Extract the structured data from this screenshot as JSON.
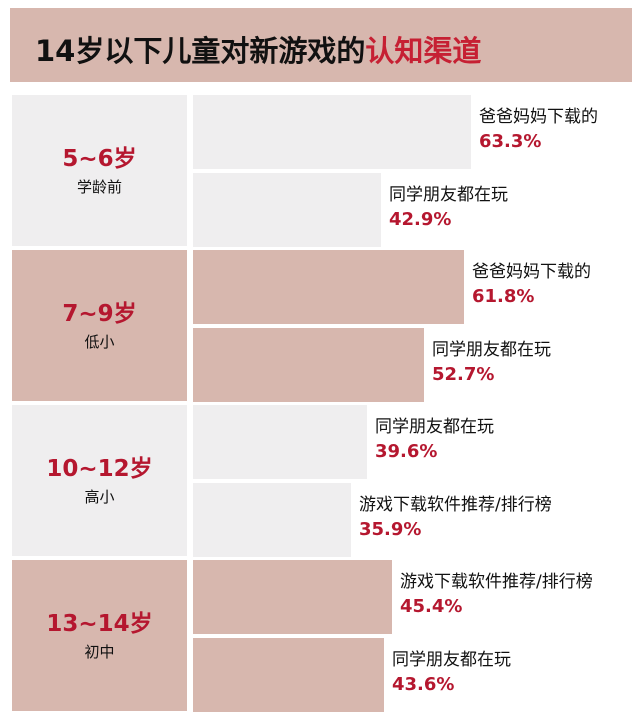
{
  "title": {
    "prefix": "14岁以下儿童对新游戏的",
    "highlight": "认知渠道"
  },
  "colors": {
    "header_bg": "#d7b7ae",
    "band_light": "#efeeef",
    "band_dark": "#d7b7ae",
    "accent_red": "#b5172f"
  },
  "chart_data": {
    "type": "bar",
    "orientation": "horizontal",
    "title": "14岁以下儿童对新游戏的认知渠道",
    "value_unit": "%",
    "xlim": [
      0,
      100
    ],
    "groups": [
      {
        "range": "5~6岁",
        "stage": "学龄前",
        "items": [
          {
            "category": "爸爸妈妈下载的",
            "value": 63.3,
            "label": "63.3%"
          },
          {
            "category": "同学朋友都在玩",
            "value": 42.9,
            "label": "42.9%"
          }
        ]
      },
      {
        "range": "7~9岁",
        "stage": "低小",
        "items": [
          {
            "category": "爸爸妈妈下载的",
            "value": 61.8,
            "label": "61.8%"
          },
          {
            "category": "同学朋友都在玩",
            "value": 52.7,
            "label": "52.7%"
          }
        ]
      },
      {
        "range": "10~12岁",
        "stage": "高小",
        "items": [
          {
            "category": "同学朋友都在玩",
            "value": 39.6,
            "label": "39.6%"
          },
          {
            "category": "游戏下载软件推荐/排行榜",
            "value": 35.9,
            "label": "35.9%"
          }
        ]
      },
      {
        "range": "13~14岁",
        "stage": "初中",
        "items": [
          {
            "category": "游戏下载软件推荐/排行榜",
            "value": 45.4,
            "label": "45.4%"
          },
          {
            "category": "同学朋友都在玩",
            "value": 43.6,
            "label": "43.6%"
          }
        ]
      }
    ]
  }
}
